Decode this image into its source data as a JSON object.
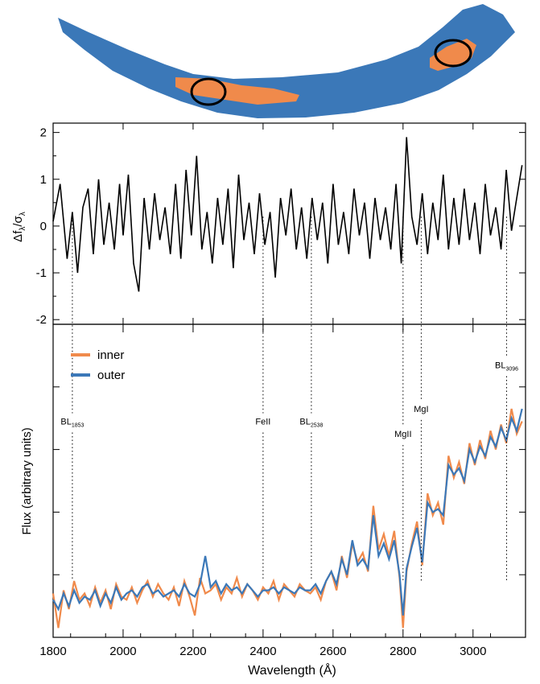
{
  "colors": {
    "inner": "#f08a4b",
    "outer": "#3b78b8",
    "line": "#000000"
  },
  "chart_data": [
    {
      "type": "heatmap",
      "description_of_panel": "",
      "series": [
        {
          "name": "inner",
          "color": "#f08a4b"
        },
        {
          "name": "outer",
          "color": "#3b78b8"
        }
      ],
      "markers": [
        "ellipse-1",
        "ellipse-2"
      ]
    },
    {
      "type": "line",
      "ylabel": "Δf_λ/σ_λ",
      "ylabel_main": "Δf",
      "ylabel_sub1": "λ",
      "ylabel_slash": "/σ",
      "ylabel_sub2": "λ",
      "xlim": [
        1800,
        3150
      ],
      "ylim": [
        -2.1,
        2.2
      ],
      "yticks": [
        -2,
        -1,
        0,
        1,
        2
      ],
      "ytick_labels": [
        "-2",
        "-1",
        "0",
        "1",
        "2"
      ],
      "series": [
        {
          "x": [
            1800,
            1820,
            1840,
            1855,
            1870,
            1885,
            1900,
            1915,
            1930,
            1945,
            1960,
            1975,
            1990,
            2000,
            2015,
            2030,
            2045,
            2060,
            2075,
            2090,
            2105,
            2120,
            2135,
            2150,
            2165,
            2180,
            2195,
            2210,
            2225,
            2240,
            2255,
            2270,
            2285,
            2300,
            2315,
            2330,
            2345,
            2360,
            2375,
            2390,
            2405,
            2420,
            2435,
            2450,
            2465,
            2480,
            2495,
            2510,
            2525,
            2540,
            2555,
            2570,
            2585,
            2600,
            2615,
            2630,
            2645,
            2660,
            2675,
            2690,
            2705,
            2720,
            2735,
            2750,
            2765,
            2780,
            2795,
            2810,
            2825,
            2840,
            2855,
            2870,
            2885,
            2900,
            2915,
            2930,
            2945,
            2960,
            2975,
            2990,
            3005,
            3020,
            3035,
            3050,
            3065,
            3080,
            3095,
            3110,
            3125,
            3140
          ],
          "y": [
            0.1,
            0.9,
            -0.7,
            0.3,
            -1.0,
            0.4,
            0.8,
            -0.6,
            1.0,
            -0.4,
            0.5,
            -0.5,
            0.9,
            -0.2,
            1.1,
            -0.8,
            -1.4,
            0.6,
            -0.5,
            0.7,
            -0.3,
            0.4,
            -0.6,
            0.9,
            -0.7,
            1.2,
            -0.2,
            1.5,
            -0.5,
            0.3,
            -0.8,
            0.6,
            -0.4,
            0.8,
            -0.9,
            1.1,
            -0.3,
            0.5,
            -0.6,
            0.7,
            -0.4,
            0.3,
            -1.1,
            0.6,
            -0.2,
            0.8,
            -0.5,
            0.4,
            -0.7,
            0.6,
            -0.3,
            0.5,
            -0.8,
            0.9,
            -0.4,
            0.3,
            -0.6,
            0.8,
            -0.2,
            0.5,
            -0.7,
            0.6,
            -0.3,
            0.4,
            -0.5,
            0.9,
            -0.8,
            1.9,
            0.2,
            -0.4,
            0.7,
            -0.6,
            0.5,
            -0.3,
            1.1,
            -0.5,
            0.6,
            -0.4,
            0.8,
            -0.3,
            0.5,
            -0.6,
            0.9,
            -0.2,
            0.4,
            -0.5,
            1.2,
            -0.1,
            0.6,
            1.3
          ]
        }
      ]
    },
    {
      "type": "line",
      "title": "",
      "xlabel": "Wavelength (Å)",
      "ylabel": "Flux (arbitrary units)",
      "xlim": [
        1800,
        3150
      ],
      "ylim": [
        0.0,
        10.0
      ],
      "xticks": [
        1800,
        2000,
        2200,
        2400,
        2600,
        2800,
        3000
      ],
      "xtick_labels": [
        "1800",
        "2000",
        "2200",
        "2400",
        "2600",
        "2800",
        "3000"
      ],
      "legend": {
        "placement": "top-left",
        "entries": [
          "inner",
          "outer"
        ]
      },
      "series": [
        {
          "name": "inner",
          "color": "#f08a4b",
          "x": [
            1800,
            1815,
            1830,
            1845,
            1860,
            1875,
            1890,
            1905,
            1920,
            1935,
            1950,
            1965,
            1980,
            1995,
            2010,
            2025,
            2040,
            2055,
            2070,
            2085,
            2100,
            2115,
            2130,
            2145,
            2160,
            2175,
            2190,
            2205,
            2220,
            2235,
            2250,
            2265,
            2280,
            2295,
            2310,
            2325,
            2340,
            2355,
            2370,
            2385,
            2400,
            2415,
            2430,
            2445,
            2460,
            2475,
            2490,
            2505,
            2520,
            2535,
            2550,
            2565,
            2580,
            2595,
            2610,
            2625,
            2640,
            2655,
            2670,
            2685,
            2700,
            2715,
            2730,
            2745,
            2760,
            2775,
            2790,
            2800,
            2810,
            2825,
            2840,
            2855,
            2870,
            2885,
            2900,
            2915,
            2930,
            2945,
            2960,
            2975,
            2990,
            3005,
            3020,
            3035,
            3050,
            3065,
            3080,
            3095,
            3110,
            3125,
            3140
          ],
          "y": [
            1.4,
            0.3,
            1.5,
            0.9,
            1.8,
            1.2,
            1.4,
            1.0,
            1.6,
            1.1,
            1.5,
            0.9,
            1.7,
            1.3,
            1.2,
            1.6,
            1.1,
            1.5,
            1.8,
            1.3,
            1.7,
            1.4,
            1.2,
            1.6,
            1.0,
            1.8,
            1.3,
            0.7,
            1.9,
            1.4,
            1.5,
            1.7,
            1.2,
            1.6,
            1.4,
            1.9,
            1.3,
            1.7,
            1.5,
            1.2,
            1.6,
            1.4,
            1.8,
            1.2,
            1.7,
            1.5,
            1.3,
            1.7,
            1.5,
            1.4,
            1.6,
            1.2,
            1.8,
            2.1,
            1.5,
            2.6,
            1.9,
            3.0,
            2.4,
            2.7,
            2.1,
            4.2,
            2.8,
            3.3,
            2.6,
            3.4,
            1.9,
            0.3,
            2.1,
            3.0,
            3.7,
            2.3,
            4.6,
            3.9,
            4.3,
            3.6,
            5.8,
            5.1,
            5.6,
            4.9,
            6.2,
            5.5,
            6.3,
            5.7,
            6.6,
            6.0,
            6.8,
            6.2,
            7.3,
            6.5,
            6.9
          ]
        },
        {
          "name": "outer",
          "color": "#3b78b8",
          "x": [
            1800,
            1815,
            1830,
            1845,
            1860,
            1875,
            1890,
            1905,
            1920,
            1935,
            1950,
            1965,
            1980,
            1995,
            2010,
            2025,
            2040,
            2055,
            2070,
            2085,
            2100,
            2115,
            2130,
            2145,
            2160,
            2175,
            2190,
            2205,
            2220,
            2235,
            2250,
            2265,
            2280,
            2295,
            2310,
            2325,
            2340,
            2355,
            2370,
            2385,
            2400,
            2415,
            2430,
            2445,
            2460,
            2475,
            2490,
            2505,
            2520,
            2535,
            2550,
            2565,
            2580,
            2595,
            2610,
            2625,
            2640,
            2655,
            2670,
            2685,
            2700,
            2715,
            2730,
            2745,
            2760,
            2775,
            2790,
            2800,
            2810,
            2825,
            2840,
            2855,
            2870,
            2885,
            2900,
            2915,
            2930,
            2945,
            2960,
            2975,
            2990,
            3005,
            3020,
            3035,
            3050,
            3065,
            3080,
            3095,
            3110,
            3125,
            3140
          ],
          "y": [
            1.2,
            0.9,
            1.4,
            1.0,
            1.5,
            1.1,
            1.3,
            1.2,
            1.5,
            1.0,
            1.4,
            1.1,
            1.6,
            1.2,
            1.4,
            1.5,
            1.3,
            1.6,
            1.7,
            1.4,
            1.5,
            1.3,
            1.4,
            1.5,
            1.3,
            1.7,
            1.4,
            1.3,
            1.7,
            2.6,
            1.6,
            1.8,
            1.4,
            1.7,
            1.5,
            1.6,
            1.4,
            1.7,
            1.5,
            1.3,
            1.5,
            1.5,
            1.6,
            1.4,
            1.6,
            1.5,
            1.4,
            1.6,
            1.5,
            1.5,
            1.7,
            1.4,
            1.8,
            2.1,
            1.7,
            2.5,
            2.0,
            3.1,
            2.3,
            2.5,
            2.2,
            3.9,
            2.6,
            3.0,
            2.5,
            3.1,
            2.0,
            0.7,
            2.2,
            2.9,
            3.5,
            2.4,
            4.3,
            4.0,
            4.1,
            3.9,
            5.5,
            5.2,
            5.4,
            5.0,
            6.0,
            5.6,
            6.1,
            5.8,
            6.4,
            6.1,
            6.7,
            6.3,
            7.0,
            6.6,
            7.3
          ]
        }
      ],
      "annotations": [
        {
          "x": 1855,
          "label": "BL",
          "sub": "1853",
          "level": 6.8
        },
        {
          "x": 2400,
          "label": "FeII",
          "sub": "",
          "level": 6.8
        },
        {
          "x": 2538,
          "label": "BL",
          "sub": "2538",
          "level": 6.8
        },
        {
          "x": 2800,
          "label": "MgII",
          "sub": "",
          "level": 6.4
        },
        {
          "x": 2852,
          "label": "MgI",
          "sub": "",
          "level": 7.2
        },
        {
          "x": 3096,
          "label": "BL",
          "sub": "3096",
          "level": 8.6
        }
      ]
    }
  ]
}
